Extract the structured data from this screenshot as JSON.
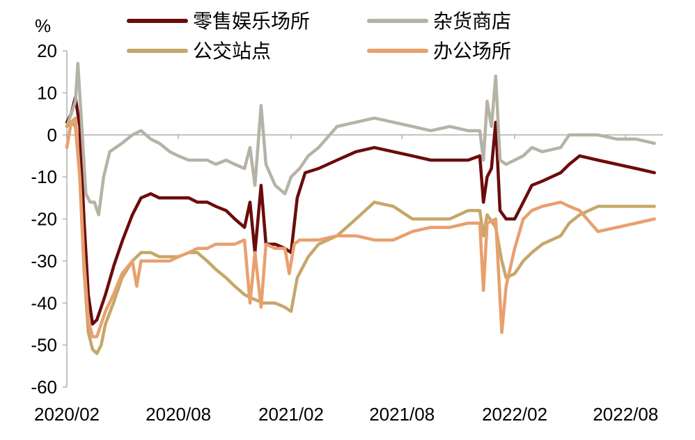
{
  "chart_data": {
    "type": "line",
    "title": "",
    "xlabel": "",
    "ylabel": "%",
    "ylim": [
      -60,
      20
    ],
    "yticks": [
      20,
      10,
      0,
      -10,
      -20,
      -30,
      -40,
      -50,
      -60
    ],
    "xlim": [
      "2020-02-15",
      "2022-10-15"
    ],
    "xticks": [
      {
        "date": "2020-02-15",
        "label": "2020/02"
      },
      {
        "date": "2020-08-15",
        "label": "2020/08"
      },
      {
        "date": "2021-02-15",
        "label": "2021/02"
      },
      {
        "date": "2021-08-15",
        "label": "2021/08"
      },
      {
        "date": "2022-02-15",
        "label": "2022/02"
      },
      {
        "date": "2022-08-15",
        "label": "2022/08"
      }
    ],
    "grid": false,
    "legend_position": "top",
    "series": [
      {
        "name": "零售娱乐场所",
        "color": "#6b0c0c",
        "points": [
          [
            "2020-02-15",
            3
          ],
          [
            "2020-02-22",
            5
          ],
          [
            "2020-02-29",
            9
          ],
          [
            "2020-03-07",
            2
          ],
          [
            "2020-03-14",
            -20
          ],
          [
            "2020-03-21",
            -38
          ],
          [
            "2020-03-28",
            -45
          ],
          [
            "2020-04-04",
            -44
          ],
          [
            "2020-04-11",
            -41
          ],
          [
            "2020-04-18",
            -38
          ],
          [
            "2020-05-02",
            -31
          ],
          [
            "2020-05-16",
            -25
          ],
          [
            "2020-06-01",
            -19
          ],
          [
            "2020-06-15",
            -15
          ],
          [
            "2020-07-01",
            -14
          ],
          [
            "2020-07-15",
            -15
          ],
          [
            "2020-08-01",
            -15
          ],
          [
            "2020-08-15",
            -15
          ],
          [
            "2020-09-01",
            -15
          ],
          [
            "2020-09-15",
            -16
          ],
          [
            "2020-10-01",
            -16
          ],
          [
            "2020-10-15",
            -17
          ],
          [
            "2020-11-01",
            -18
          ],
          [
            "2020-11-15",
            -20
          ],
          [
            "2020-12-01",
            -22
          ],
          [
            "2020-12-10",
            -16
          ],
          [
            "2020-12-18",
            -28
          ],
          [
            "2020-12-28",
            -12
          ],
          [
            "2021-01-05",
            -26
          ],
          [
            "2021-01-20",
            -26
          ],
          [
            "2021-02-05",
            -27
          ],
          [
            "2021-02-15",
            -28
          ],
          [
            "2021-02-25",
            -15
          ],
          [
            "2021-03-10",
            -9
          ],
          [
            "2021-04-01",
            -8
          ],
          [
            "2021-05-01",
            -6
          ],
          [
            "2021-06-01",
            -4
          ],
          [
            "2021-07-01",
            -3
          ],
          [
            "2021-08-01",
            -4
          ],
          [
            "2021-09-01",
            -5
          ],
          [
            "2021-10-01",
            -6
          ],
          [
            "2021-11-01",
            -6
          ],
          [
            "2021-12-01",
            -6
          ],
          [
            "2021-12-20",
            -5
          ],
          [
            "2021-12-26",
            -16
          ],
          [
            "2022-01-01",
            -10
          ],
          [
            "2022-01-08",
            -8
          ],
          [
            "2022-01-15",
            3
          ],
          [
            "2022-01-22",
            -18
          ],
          [
            "2022-02-01",
            -20
          ],
          [
            "2022-02-15",
            -20
          ],
          [
            "2022-03-01",
            -16
          ],
          [
            "2022-03-15",
            -12
          ],
          [
            "2022-04-01",
            -11
          ],
          [
            "2022-05-01",
            -9
          ],
          [
            "2022-05-15",
            -7
          ],
          [
            "2022-06-01",
            -5
          ],
          [
            "2022-07-01",
            -6
          ],
          [
            "2022-08-01",
            -7
          ],
          [
            "2022-09-01",
            -8
          ],
          [
            "2022-10-01",
            -9
          ]
        ]
      },
      {
        "name": "杂货商店",
        "color": "#b5b3a6",
        "points": [
          [
            "2020-02-15",
            2
          ],
          [
            "2020-02-22",
            5
          ],
          [
            "2020-02-29",
            8
          ],
          [
            "2020-03-04",
            17
          ],
          [
            "2020-03-10",
            3
          ],
          [
            "2020-03-17",
            -14
          ],
          [
            "2020-03-24",
            -16
          ],
          [
            "2020-03-31",
            -16
          ],
          [
            "2020-04-07",
            -19
          ],
          [
            "2020-04-15",
            -10
          ],
          [
            "2020-04-25",
            -4
          ],
          [
            "2020-05-15",
            -2
          ],
          [
            "2020-06-01",
            0
          ],
          [
            "2020-06-15",
            1
          ],
          [
            "2020-07-01",
            -1
          ],
          [
            "2020-07-15",
            -2
          ],
          [
            "2020-08-01",
            -4
          ],
          [
            "2020-08-15",
            -5
          ],
          [
            "2020-09-01",
            -6
          ],
          [
            "2020-09-15",
            -6
          ],
          [
            "2020-10-01",
            -6
          ],
          [
            "2020-10-15",
            -7
          ],
          [
            "2020-11-01",
            -6
          ],
          [
            "2020-11-15",
            -7
          ],
          [
            "2020-12-01",
            -8
          ],
          [
            "2020-12-10",
            -3
          ],
          [
            "2020-12-18",
            -12
          ],
          [
            "2020-12-28",
            7
          ],
          [
            "2021-01-05",
            -7
          ],
          [
            "2021-01-20",
            -12
          ],
          [
            "2021-02-05",
            -14
          ],
          [
            "2021-02-15",
            -10
          ],
          [
            "2021-03-01",
            -8
          ],
          [
            "2021-03-15",
            -5
          ],
          [
            "2021-04-01",
            -3
          ],
          [
            "2021-05-01",
            2
          ],
          [
            "2021-06-01",
            3
          ],
          [
            "2021-07-01",
            4
          ],
          [
            "2021-08-01",
            3
          ],
          [
            "2021-09-01",
            2
          ],
          [
            "2021-10-01",
            1
          ],
          [
            "2021-11-01",
            2
          ],
          [
            "2021-12-01",
            1
          ],
          [
            "2021-12-20",
            1
          ],
          [
            "2021-12-26",
            -6
          ],
          [
            "2022-01-01",
            8
          ],
          [
            "2022-01-08",
            2
          ],
          [
            "2022-01-15",
            14
          ],
          [
            "2022-01-22",
            -6
          ],
          [
            "2022-02-01",
            -7
          ],
          [
            "2022-02-15",
            -6
          ],
          [
            "2022-03-01",
            -5
          ],
          [
            "2022-03-15",
            -3
          ],
          [
            "2022-04-01",
            -4
          ],
          [
            "2022-05-01",
            -3
          ],
          [
            "2022-05-15",
            0
          ],
          [
            "2022-06-01",
            0
          ],
          [
            "2022-07-01",
            0
          ],
          [
            "2022-08-01",
            -1
          ],
          [
            "2022-09-01",
            -1
          ],
          [
            "2022-10-01",
            -2
          ]
        ]
      },
      {
        "name": "公交站点",
        "color": "#c5a769",
        "points": [
          [
            "2020-02-15",
            2
          ],
          [
            "2020-02-22",
            3
          ],
          [
            "2020-02-29",
            2
          ],
          [
            "2020-03-07",
            -10
          ],
          [
            "2020-03-14",
            -32
          ],
          [
            "2020-03-21",
            -47
          ],
          [
            "2020-03-28",
            -51
          ],
          [
            "2020-04-04",
            -52
          ],
          [
            "2020-04-11",
            -50
          ],
          [
            "2020-04-18",
            -45
          ],
          [
            "2020-05-01",
            -40
          ],
          [
            "2020-05-15",
            -34
          ],
          [
            "2020-06-01",
            -30
          ],
          [
            "2020-06-15",
            -28
          ],
          [
            "2020-07-01",
            -28
          ],
          [
            "2020-07-15",
            -29
          ],
          [
            "2020-08-01",
            -29
          ],
          [
            "2020-08-15",
            -29
          ],
          [
            "2020-09-01",
            -28
          ],
          [
            "2020-09-15",
            -28
          ],
          [
            "2020-10-01",
            -30
          ],
          [
            "2020-10-15",
            -32
          ],
          [
            "2020-11-01",
            -34
          ],
          [
            "2020-11-15",
            -36
          ],
          [
            "2020-12-01",
            -38
          ],
          [
            "2020-12-15",
            -39
          ],
          [
            "2021-01-01",
            -40
          ],
          [
            "2021-01-20",
            -40
          ],
          [
            "2021-02-05",
            -41
          ],
          [
            "2021-02-15",
            -42
          ],
          [
            "2021-02-25",
            -34
          ],
          [
            "2021-03-15",
            -29
          ],
          [
            "2021-04-01",
            -26
          ],
          [
            "2021-05-01",
            -24
          ],
          [
            "2021-06-01",
            -20
          ],
          [
            "2021-07-01",
            -16
          ],
          [
            "2021-08-01",
            -17
          ],
          [
            "2021-09-01",
            -20
          ],
          [
            "2021-10-01",
            -20
          ],
          [
            "2021-11-01",
            -20
          ],
          [
            "2021-12-01",
            -18
          ],
          [
            "2021-12-20",
            -18
          ],
          [
            "2021-12-26",
            -24
          ],
          [
            "2022-01-01",
            -19
          ],
          [
            "2022-01-15",
            -22
          ],
          [
            "2022-01-25",
            -30
          ],
          [
            "2022-02-01",
            -34
          ],
          [
            "2022-02-15",
            -33
          ],
          [
            "2022-03-01",
            -30
          ],
          [
            "2022-03-15",
            -28
          ],
          [
            "2022-04-01",
            -26
          ],
          [
            "2022-05-01",
            -24
          ],
          [
            "2022-05-15",
            -21
          ],
          [
            "2022-06-01",
            -19
          ],
          [
            "2022-07-01",
            -17
          ],
          [
            "2022-08-01",
            -17
          ],
          [
            "2022-09-01",
            -17
          ],
          [
            "2022-10-01",
            -17
          ]
        ]
      },
      {
        "name": "办公场所",
        "color": "#e8a06e",
        "points": [
          [
            "2020-02-15",
            -3
          ],
          [
            "2020-02-22",
            3
          ],
          [
            "2020-02-29",
            4
          ],
          [
            "2020-03-07",
            -10
          ],
          [
            "2020-03-14",
            -30
          ],
          [
            "2020-03-21",
            -44
          ],
          [
            "2020-03-28",
            -48
          ],
          [
            "2020-04-04",
            -48
          ],
          [
            "2020-04-11",
            -45
          ],
          [
            "2020-04-18",
            -42
          ],
          [
            "2020-05-01",
            -38
          ],
          [
            "2020-05-15",
            -33
          ],
          [
            "2020-06-01",
            -30
          ],
          [
            "2020-06-08",
            -36
          ],
          [
            "2020-06-15",
            -30
          ],
          [
            "2020-07-01",
            -30
          ],
          [
            "2020-07-15",
            -30
          ],
          [
            "2020-08-01",
            -30
          ],
          [
            "2020-08-15",
            -29
          ],
          [
            "2020-09-01",
            -28
          ],
          [
            "2020-09-15",
            -27
          ],
          [
            "2020-10-01",
            -27
          ],
          [
            "2020-10-15",
            -26
          ],
          [
            "2020-11-01",
            -26
          ],
          [
            "2020-11-15",
            -26
          ],
          [
            "2020-12-01",
            -25
          ],
          [
            "2020-12-10",
            -40
          ],
          [
            "2020-12-18",
            -28
          ],
          [
            "2020-12-28",
            -41
          ],
          [
            "2021-01-05",
            -26
          ],
          [
            "2021-01-20",
            -27
          ],
          [
            "2021-02-05",
            -27
          ],
          [
            "2021-02-12",
            -33
          ],
          [
            "2021-02-20",
            -26
          ],
          [
            "2021-03-01",
            -25
          ],
          [
            "2021-04-01",
            -25
          ],
          [
            "2021-05-01",
            -24
          ],
          [
            "2021-06-01",
            -24
          ],
          [
            "2021-07-01",
            -25
          ],
          [
            "2021-08-01",
            -25
          ],
          [
            "2021-09-01",
            -23
          ],
          [
            "2021-10-01",
            -22
          ],
          [
            "2021-11-01",
            -22
          ],
          [
            "2021-12-01",
            -21
          ],
          [
            "2021-12-20",
            -21
          ],
          [
            "2021-12-26",
            -37
          ],
          [
            "2022-01-01",
            -21
          ],
          [
            "2022-01-15",
            -20
          ],
          [
            "2022-01-25",
            -47
          ],
          [
            "2022-02-01",
            -36
          ],
          [
            "2022-02-15",
            -27
          ],
          [
            "2022-03-01",
            -20
          ],
          [
            "2022-03-15",
            -18
          ],
          [
            "2022-04-01",
            -17
          ],
          [
            "2022-05-01",
            -16
          ],
          [
            "2022-05-15",
            -17
          ],
          [
            "2022-06-01",
            -18
          ],
          [
            "2022-07-01",
            -23
          ],
          [
            "2022-08-01",
            -22
          ],
          [
            "2022-09-01",
            -21
          ],
          [
            "2022-10-01",
            -20
          ]
        ]
      }
    ]
  }
}
